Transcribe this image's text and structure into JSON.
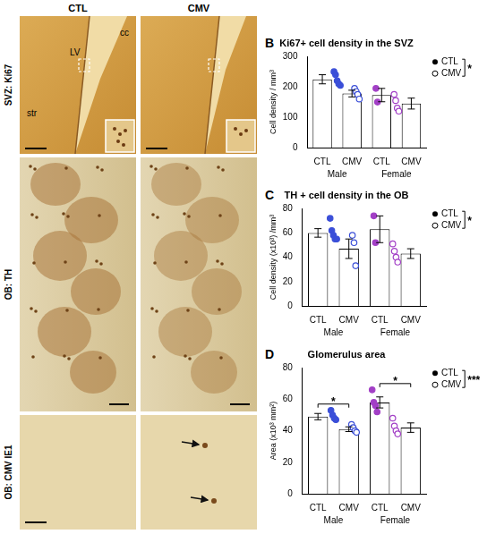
{
  "panel_a": {
    "columns": [
      "CTL",
      "CMV"
    ],
    "rows": [
      "SVZ: Ki67",
      "OB: TH",
      "OB: CMV IE1"
    ],
    "labels": [
      "cc",
      "LV",
      "str"
    ]
  },
  "chart_data": [
    {
      "panel": "B",
      "type": "bar",
      "title": "Ki67+ cell density in the SVZ",
      "y_label": "Cell density / mm³",
      "categories": [
        "CTL",
        "CMV",
        "CTL",
        "CMV"
      ],
      "groups": [
        "Male",
        "Male",
        "Female",
        "Female"
      ],
      "color": "#ffffff",
      "colors": [
        "#3b4fd8",
        "#3b4fd8",
        "#a23fc6",
        "#a23fc6"
      ],
      "series": [
        {
          "name": "CTL",
          "marker": "filled",
          "values": [
            225,
            null,
            173,
            null
          ],
          "errors": [
            15,
            null,
            22,
            null
          ],
          "points": [
            [
              250,
              240,
              220,
              210,
              205
            ],
            [],
            [
              195,
              150
            ],
            []
          ]
        },
        {
          "name": "CMV",
          "marker": "open",
          "values": [
            null,
            178,
            null,
            145
          ],
          "errors": [
            null,
            11,
            null,
            18
          ],
          "points": [
            [],
            [
              195,
              185,
              175,
              160
            ],
            [],
            [
              175,
              155,
              130,
              120
            ]
          ]
        }
      ],
      "ylim": [
        0,
        300
      ],
      "yticks": [
        0,
        100,
        200,
        300
      ],
      "grid": false,
      "legend": "right",
      "legend_significance": "*"
    },
    {
      "panel": "C",
      "type": "bar",
      "title": "TH + cell density in the OB",
      "y_label": "Cell density (x10³) /mm³",
      "categories": [
        "CTL",
        "CMV",
        "CTL",
        "CMV"
      ],
      "groups": [
        "Male",
        "Male",
        "Female",
        "Female"
      ],
      "color": "#ffffff",
      "colors": [
        "#3b4fd8",
        "#3b4fd8",
        "#a23fc6",
        "#a23fc6"
      ],
      "series": [
        {
          "name": "CTL",
          "marker": "filled",
          "values": [
            60,
            null,
            63,
            null
          ],
          "errors": [
            3.5,
            null,
            11,
            null
          ],
          "points": [
            [
              72,
              62,
              58,
              55,
              55
            ],
            [],
            [
              74,
              52
            ],
            []
          ]
        },
        {
          "name": "CMV",
          "marker": "open",
          "values": [
            null,
            47,
            null,
            43
          ],
          "errors": [
            null,
            8,
            null,
            4
          ],
          "points": [
            [],
            [
              58,
              52,
              33
            ],
            [],
            [
              51,
              45,
              40,
              36
            ]
          ]
        }
      ],
      "ylim": [
        0,
        80
      ],
      "yticks": [
        0,
        20,
        40,
        60,
        80
      ],
      "grid": false,
      "legend": "right",
      "legend_significance": "*"
    },
    {
      "panel": "D",
      "type": "bar",
      "title": "Glomerulus area",
      "y_label": "Area (x10³ mm²)",
      "categories": [
        "CTL",
        "CMV",
        "CTL",
        "CMV"
      ],
      "groups": [
        "Male",
        "Male",
        "Female",
        "Female"
      ],
      "color": "#ffffff",
      "colors": [
        "#3b4fd8",
        "#3b4fd8",
        "#a23fc6",
        "#a23fc6"
      ],
      "series": [
        {
          "name": "CTL",
          "marker": "filled",
          "values": [
            49,
            null,
            58,
            null
          ],
          "errors": [
            2,
            null,
            3.5,
            null
          ],
          "points": [
            [
              53,
              50,
              48,
              47
            ],
            [],
            [
              66,
              58,
              56,
              52
            ],
            []
          ]
        },
        {
          "name": "CMV",
          "marker": "open",
          "values": [
            null,
            41,
            null,
            42
          ],
          "errors": [
            null,
            1.5,
            null,
            3
          ],
          "points": [
            [],
            [
              44,
              42,
              40,
              39
            ],
            [],
            [
              48,
              43,
              40,
              38
            ]
          ]
        }
      ],
      "ylim": [
        0,
        80
      ],
      "yticks": [
        0,
        20,
        40,
        60,
        80
      ],
      "grid": false,
      "legend": "right",
      "legend_significance": "***",
      "comparisons": [
        {
          "group": "Male",
          "label": "*"
        },
        {
          "group": "Female",
          "label": "*"
        }
      ]
    }
  ]
}
